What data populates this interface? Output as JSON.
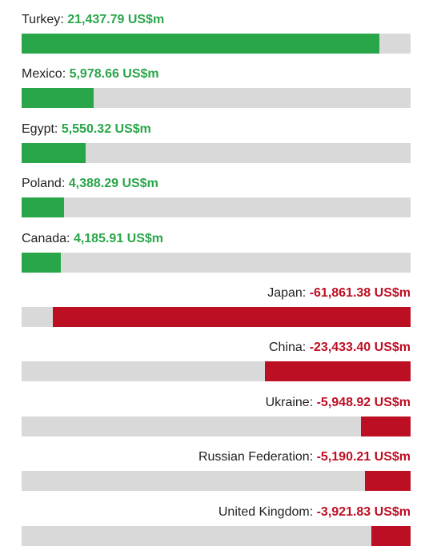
{
  "chart_data": {
    "type": "bar",
    "orientation": "horizontal",
    "unit": "US$m",
    "colors": {
      "positive": "#2aa64a",
      "negative": "#bd0f24",
      "track": "#d9d9d9"
    },
    "rows": [
      {
        "name": "Turkey",
        "value_label": "21,437.79 US$m",
        "value": 21437.79,
        "fraction": 0.92
      },
      {
        "name": "Mexico",
        "value_label": "5,978.66 US$m",
        "value": 5978.66,
        "fraction": 0.185
      },
      {
        "name": "Egypt",
        "value_label": "5,550.32 US$m",
        "value": 5550.32,
        "fraction": 0.165
      },
      {
        "name": "Poland",
        "value_label": "4,388.29 US$m",
        "value": 4388.29,
        "fraction": 0.11
      },
      {
        "name": "Canada",
        "value_label": "4,185.91 US$m",
        "value": 4185.91,
        "fraction": 0.1
      },
      {
        "name": "Japan",
        "value_label": "-61,861.38 US$m",
        "value": -61861.38,
        "fraction": 0.92
      },
      {
        "name": "China",
        "value_label": "-23,433.40 US$m",
        "value": -23433.4,
        "fraction": 0.375
      },
      {
        "name": "Ukraine",
        "value_label": "-5,948.92 US$m",
        "value": -5948.92,
        "fraction": 0.128
      },
      {
        "name": "Russian Federation",
        "value_label": "-5,190.21 US$m",
        "value": -5190.21,
        "fraction": 0.117
      },
      {
        "name": "United Kingdom",
        "value_label": "-3,921.83 US$m",
        "value": -3921.83,
        "fraction": 0.1
      }
    ]
  }
}
